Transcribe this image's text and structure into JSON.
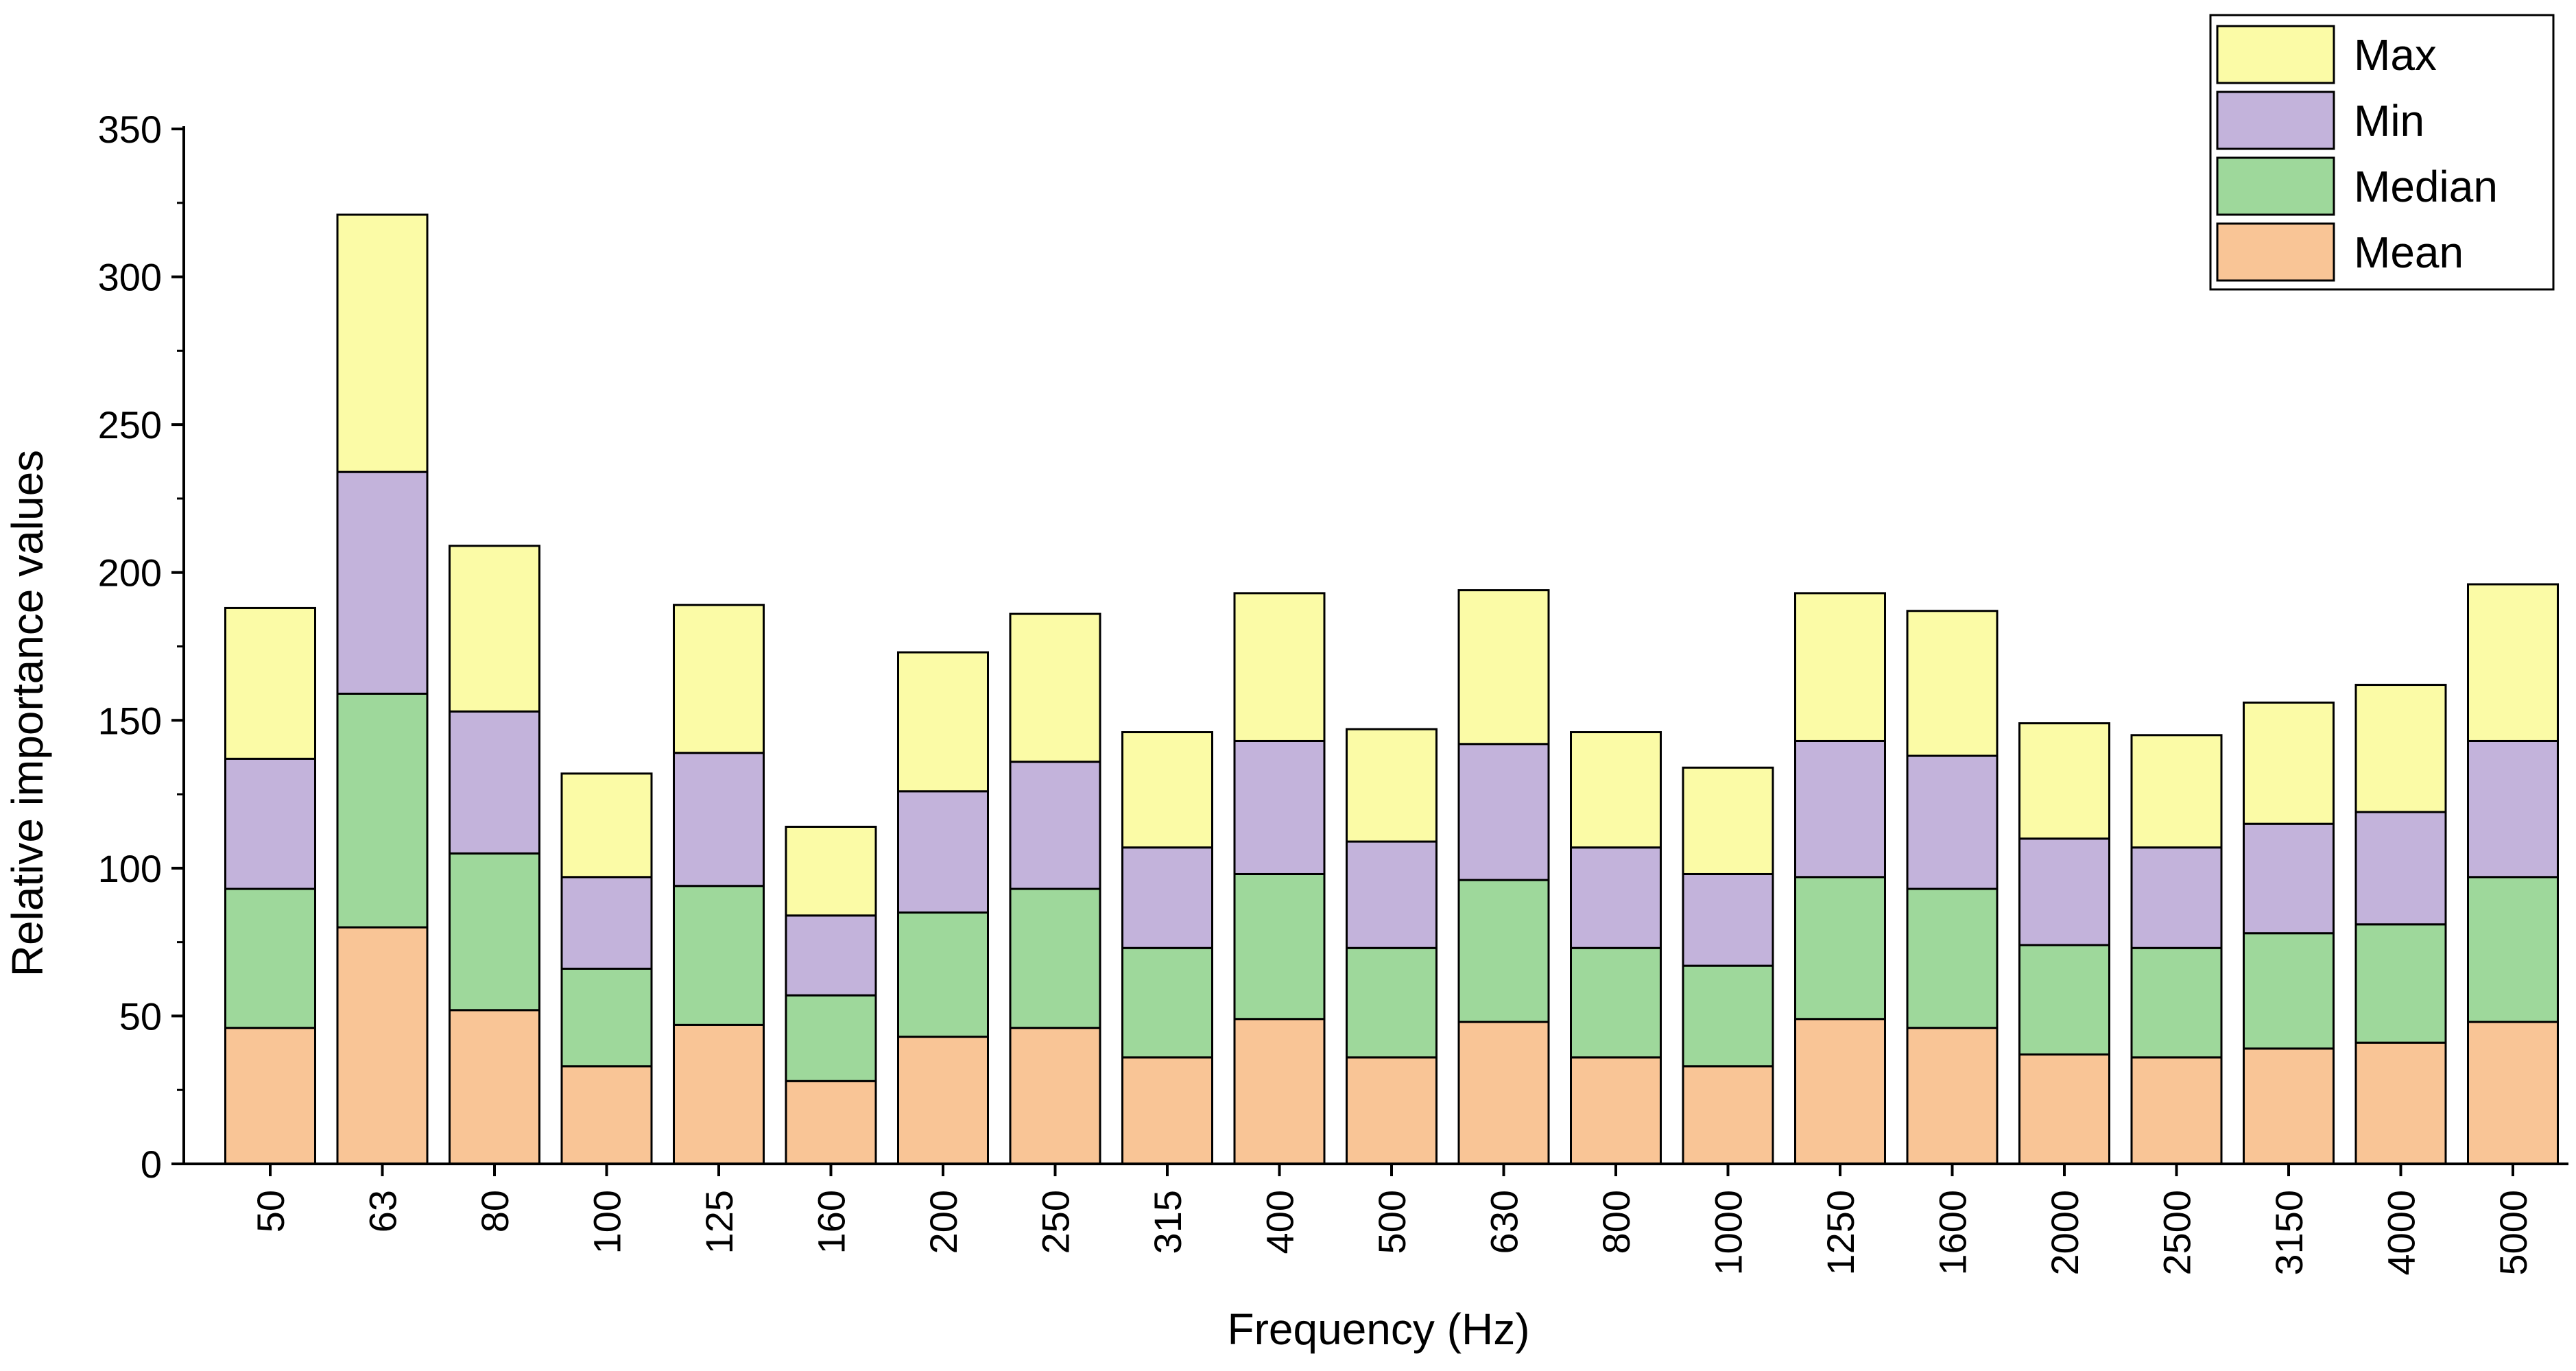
{
  "chart_data": {
    "type": "bar",
    "stacked": true,
    "title": "",
    "xlabel": "Frequency (Hz)",
    "ylabel": "Relative importance values",
    "ylim": [
      0,
      350
    ],
    "yticks": [
      "0",
      "50",
      "100",
      "150",
      "200",
      "250",
      "300",
      "350"
    ],
    "categories": [
      "50",
      "63",
      "80",
      "100",
      "125",
      "160",
      "200",
      "250",
      "315",
      "400",
      "500",
      "630",
      "800",
      "1000",
      "1250",
      "1600",
      "2000",
      "2500",
      "3150",
      "4000",
      "5000"
    ],
    "series": [
      {
        "name": "Mean",
        "color": "#f9c596",
        "values": [
          46,
          80,
          52,
          33,
          47,
          28,
          43,
          46,
          36,
          49,
          36,
          48,
          36,
          33,
          49,
          46,
          37,
          36,
          39,
          41,
          48
        ]
      },
      {
        "name": "Median",
        "color": "#9ed89b",
        "values": [
          47,
          79,
          53,
          33,
          47,
          29,
          42,
          47,
          37,
          49,
          37,
          48,
          37,
          34,
          48,
          47,
          37,
          37,
          39,
          40,
          49
        ]
      },
      {
        "name": "Min",
        "color": "#c3b3db",
        "values": [
          44,
          75,
          48,
          31,
          45,
          27,
          41,
          43,
          34,
          45,
          36,
          46,
          34,
          31,
          46,
          45,
          36,
          34,
          37,
          38,
          46
        ]
      },
      {
        "name": "Max",
        "color": "#fbfba6",
        "values": [
          51,
          87,
          56,
          35,
          50,
          30,
          47,
          50,
          39,
          50,
          38,
          52,
          39,
          36,
          50,
          49,
          39,
          38,
          41,
          43,
          53
        ]
      }
    ],
    "legend": {
      "position": "top-right",
      "order": [
        "Max",
        "Min",
        "Median",
        "Mean"
      ],
      "labels": [
        "Max",
        "Min",
        "Median",
        "Mean"
      ]
    }
  }
}
